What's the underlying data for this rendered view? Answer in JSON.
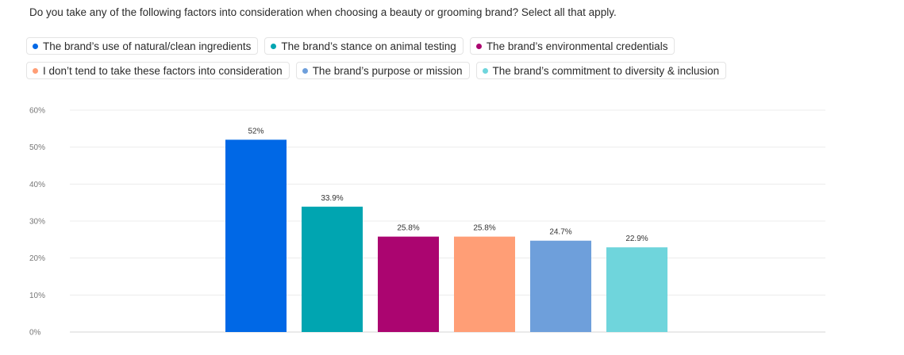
{
  "question": "Do you take any of the following factors into consideration when choosing a beauty or grooming brand? Select all that apply.",
  "legend": {
    "rows": [
      [
        {
          "label": "The brand’s use of natural/clean ingredients",
          "color": "#0068e6"
        },
        {
          "label": "The brand’s stance on animal testing",
          "color": "#00a5b1"
        },
        {
          "label": "The brand’s environmental credentials",
          "color": "#ab0570"
        }
      ],
      [
        {
          "label": "I don’t tend to take these factors into consideration",
          "color": "#ff9e76"
        },
        {
          "label": "The brand’s purpose or mission",
          "color": "#6e9fdb"
        },
        {
          "label": "The brand’s commitment to diversity & inclusion",
          "color": "#6fd5dc"
        }
      ]
    ]
  },
  "chart_data": {
    "type": "bar",
    "title": "",
    "xlabel": "",
    "ylabel": "",
    "ylim": [
      0,
      60
    ],
    "yticks": [
      0,
      10,
      20,
      30,
      40,
      50,
      60
    ],
    "ytick_labels": [
      "0%",
      "10%",
      "20%",
      "30%",
      "40%",
      "50%",
      "60%"
    ],
    "grid": true,
    "legend_position": "top",
    "series": [
      {
        "name": "The brand’s use of natural/clean ingredients",
        "value": 52,
        "label": "52%",
        "color": "#0068e6"
      },
      {
        "name": "The brand’s stance on animal testing",
        "value": 33.9,
        "label": "33.9%",
        "color": "#00a5b1"
      },
      {
        "name": "The brand’s environmental credentials",
        "value": 25.8,
        "label": "25.8%",
        "color": "#ab0570"
      },
      {
        "name": "I don’t tend to take these factors into consideration",
        "value": 25.8,
        "label": "25.8%",
        "color": "#ff9e76"
      },
      {
        "name": "The brand’s purpose or mission",
        "value": 24.7,
        "label": "24.7%",
        "color": "#6e9fdb"
      },
      {
        "name": "The brand’s commitment to diversity & inclusion",
        "value": 22.9,
        "label": "22.9%",
        "color": "#6fd5dc"
      }
    ]
  }
}
